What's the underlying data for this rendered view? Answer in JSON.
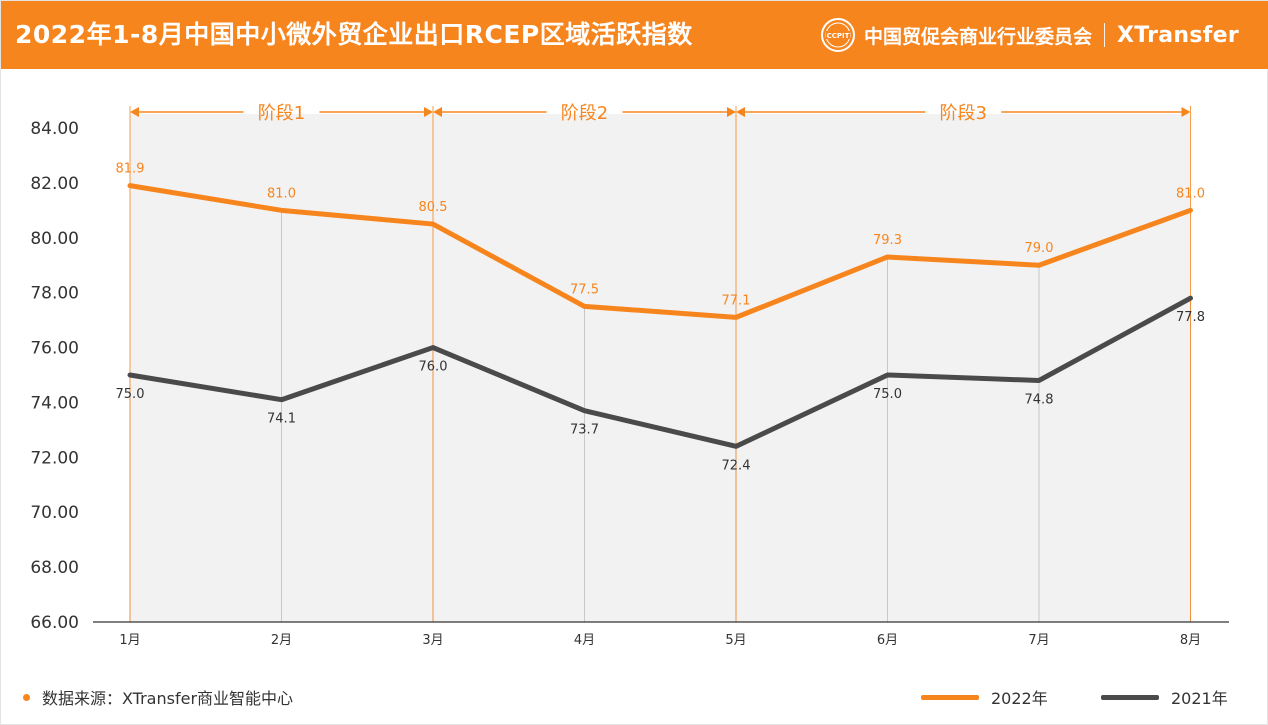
{
  "header": {
    "title": "2022年1-8月中国中小微外贸企业出口RCEP区域活跃指数",
    "org_name": "中国贸促会商业行业委员会",
    "seal_text": "CCPIT",
    "brand": "XTransfer"
  },
  "footer": {
    "source": "数据来源：XTransfer商业智能中心"
  },
  "colors": {
    "header_bg": "#F7851E",
    "series_2022": "#F7851E",
    "series_2021": "#4A4A4A",
    "phase_fill": "#F2F2F2"
  },
  "chart_data": {
    "type": "line",
    "categories": [
      "1月",
      "2月",
      "3月",
      "4月",
      "5月",
      "6月",
      "7月",
      "8月"
    ],
    "series": [
      {
        "name": "2022年",
        "values": [
          81.9,
          81.0,
          80.5,
          77.5,
          77.1,
          79.3,
          79.0,
          81.0
        ],
        "labels": [
          "81.9",
          "81.0",
          "80.5",
          "77.5",
          "77.1",
          "79.3",
          "79.0",
          "81.0"
        ]
      },
      {
        "name": "2021年",
        "values": [
          75.0,
          74.1,
          76.0,
          73.7,
          72.4,
          75.0,
          74.8,
          77.8
        ],
        "labels": [
          "75.0",
          "74.1",
          "76.0",
          "73.7",
          "72.4",
          "75.0",
          "74.8",
          "77.8"
        ]
      }
    ],
    "ylim": [
      66,
      84
    ],
    "yticks": [
      "66.00",
      "68.00",
      "70.00",
      "72.00",
      "74.00",
      "76.00",
      "78.00",
      "80.00",
      "82.00",
      "84.00"
    ],
    "phases": [
      {
        "label": "阶段1",
        "from": "1月",
        "to": "3月"
      },
      {
        "label": "阶段2",
        "from": "3月",
        "to": "5月"
      },
      {
        "label": "阶段3",
        "from": "5月",
        "to": "8月"
      }
    ],
    "grid": "vertical",
    "legend": "bottom-right"
  }
}
